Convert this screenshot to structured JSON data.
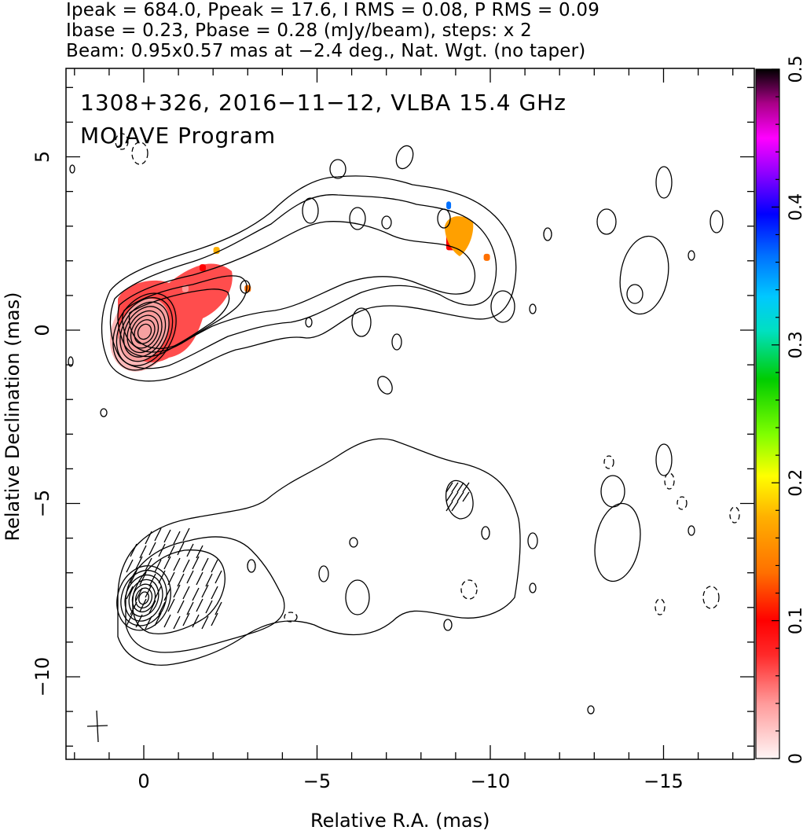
{
  "header": {
    "line1": "Ipeak = 684.0, Ppeak = 17.6, I RMS = 0.08, P RMS = 0.09",
    "line2": "Ibase = 0.23, Pbase = 0.28 (mJy/beam), steps: x 2",
    "line3": "Beam: 0.95x0.57 mas at −2.4 deg., Nat. Wgt. (no taper)"
  },
  "panel": {
    "source_line": "1308+326, 2016−11−12, VLBA 15.4 GHz",
    "program_line": "MOJAVE Program"
  },
  "chart_data": {
    "type": "heatmap",
    "description_values": {
      "total_intensity_peak_mJy_per_beam": 684.0,
      "polarized_peak_mJy_per_beam": 17.6,
      "i_rms": 0.08,
      "p_rms": 0.09,
      "i_base": 0.23,
      "p_base": 0.28,
      "contour_step_factor": 2,
      "beam_major_mas": 0.95,
      "beam_minor_mas": 0.57,
      "beam_pa_deg": -2.4
    },
    "xlabel": "Relative R.A. (mas)",
    "ylabel": "Relative Declination (mas)",
    "x_reversed": true,
    "xlim": [
      2.3,
      -17.8
    ],
    "ylim": [
      -12.4,
      7.6
    ],
    "x_ticks": [
      0,
      -5,
      -10,
      -15
    ],
    "x_tick_labels": [
      "0",
      "−5",
      "−10",
      "−15"
    ],
    "y_ticks": [
      5,
      0,
      -5,
      -10
    ],
    "y_tick_labels": [
      "5",
      "0",
      "−5",
      "−10"
    ],
    "colorbar": {
      "range": [
        0,
        0.5
      ],
      "ticks": [
        0,
        0.1,
        0.2,
        0.3,
        0.4,
        0.5
      ],
      "tick_labels": [
        "0",
        "0.1",
        "0.2",
        "0.3",
        "0.4",
        "0.5"
      ],
      "colors": [
        "#fff0f0",
        "#ff8080",
        "#ff0000",
        "#ff6600",
        "#ffaa00",
        "#ffff00",
        "#80ff00",
        "#00dd00",
        "#00ccff",
        "#0000ff",
        "#8800ff",
        "#ff00ff",
        "#000000"
      ]
    },
    "top_panel_offset_mas": 0,
    "bottom_panel_offset_mas": -8,
    "core": {
      "ra": 0.0,
      "dec": 0.0
    },
    "fractional_polarization_regions": [
      {
        "ra": -0.2,
        "dec": 0.5,
        "value": 0.05
      },
      {
        "ra": -1.2,
        "dec": 1.2,
        "value": 0.07
      },
      {
        "ra": -1.7,
        "dec": 1.8,
        "value": 0.1
      },
      {
        "ra": -2.1,
        "dec": 2.3,
        "value": 0.2
      },
      {
        "ra": -3.0,
        "dec": 1.2,
        "value": 0.16
      },
      {
        "ra": -9.0,
        "dec": 2.6,
        "value": 0.13
      },
      {
        "ra": -8.8,
        "dec": 3.6,
        "value": 0.38
      },
      {
        "ra": -9.9,
        "dec": 2.1,
        "value": 0.15
      }
    ]
  },
  "colors": {
    "contour": "#000000",
    "frame": "#000000",
    "background": "#ffffff"
  }
}
